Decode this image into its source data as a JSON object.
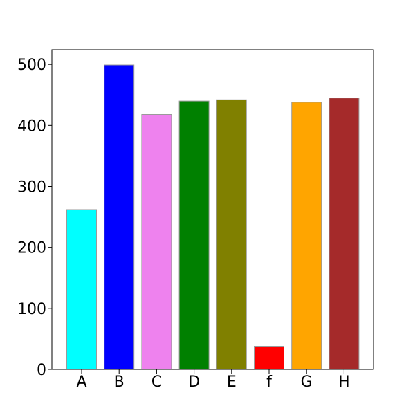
{
  "chart_data": {
    "type": "bar",
    "title": "",
    "xlabel": "",
    "ylabel": "",
    "categories": [
      "A",
      "B",
      "C",
      "D",
      "E",
      "f",
      "G",
      "H"
    ],
    "values": [
      262,
      499,
      418,
      440,
      442,
      38,
      438,
      445
    ],
    "colors": [
      "#00ffff",
      "#0000ff",
      "#ee82ee",
      "#008000",
      "#808000",
      "#ff0000",
      "#ffa500",
      "#a52a2a"
    ],
    "ylim": [
      0,
      524
    ],
    "yticks": [
      0,
      100,
      200,
      300,
      400,
      500
    ],
    "grid": false,
    "legend": "none"
  }
}
